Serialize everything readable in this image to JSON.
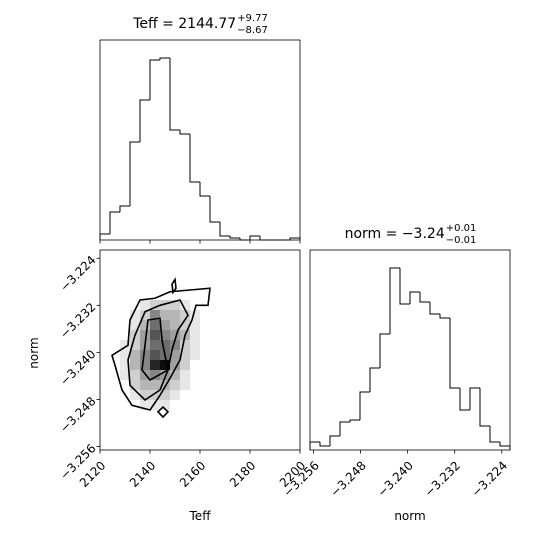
{
  "chart_data": [
    {
      "type": "histogram",
      "title": "Teff = 2144.77",
      "title_sup": "+9.77",
      "title_sub": "−8.67",
      "color": "#000000",
      "xlim": [
        2120,
        2200
      ],
      "ylim": [
        0,
        100
      ],
      "xticks": [
        2120,
        2140,
        2160,
        2180,
        2200
      ],
      "bins": [
        2120,
        2124,
        2128,
        2132,
        2136,
        2140,
        2144,
        2148,
        2152,
        2156,
        2160,
        2164,
        2168,
        2172,
        2176,
        2180,
        2184,
        2188,
        2192,
        2196,
        2200
      ],
      "values": [
        3,
        14,
        17,
        49,
        70,
        90,
        91,
        55,
        53,
        29,
        22,
        9,
        2,
        1,
        0,
        2,
        0,
        0,
        0,
        1
      ]
    },
    {
      "type": "hist2d",
      "xlabel": "Teff",
      "ylabel": "norm",
      "color": "#000000",
      "xlim": [
        2120,
        2200
      ],
      "ylim": [
        -3.2566,
        -3.2226
      ],
      "xticks": [
        2120,
        2140,
        2160,
        2180,
        2200
      ],
      "yticks": [
        {
          "value": -3.256,
          "label": "−3.256"
        },
        {
          "value": -3.248,
          "label": "−3.248"
        },
        {
          "value": -3.24,
          "label": "−3.240"
        },
        {
          "value": -3.232,
          "label": "−3.232"
        },
        {
          "value": -3.224,
          "label": "−3.224"
        }
      ],
      "xbins": [
        2128,
        2132,
        2136,
        2140,
        2144,
        2148,
        2152,
        2156,
        2160
      ],
      "ybins": [
        -3.2498,
        -3.2481,
        -3.2464,
        -3.2447,
        -3.243,
        -3.2413,
        -3.2396,
        -3.2379,
        -3.2362,
        -3.2345,
        -3.2328,
        -3.2311
      ],
      "counts": [
        [
          0,
          0,
          1,
          1,
          1,
          0,
          0,
          0
        ],
        [
          0,
          1,
          2,
          2,
          2,
          1,
          0,
          0
        ],
        [
          0,
          2,
          3,
          3,
          3,
          2,
          1,
          0
        ],
        [
          1,
          2,
          4,
          5,
          4,
          3,
          1,
          0
        ],
        [
          1,
          3,
          5,
          9,
          10,
          4,
          2,
          0
        ],
        [
          1,
          3,
          5,
          7,
          6,
          4,
          2,
          1
        ],
        [
          1,
          2,
          4,
          6,
          6,
          5,
          2,
          1
        ],
        [
          0,
          2,
          4,
          7,
          5,
          4,
          3,
          1
        ],
        [
          0,
          1,
          3,
          6,
          4,
          3,
          2,
          1
        ],
        [
          0,
          1,
          2,
          5,
          3,
          3,
          2,
          1
        ],
        [
          0,
          0,
          1,
          2,
          2,
          2,
          1,
          0
        ]
      ],
      "contours": [
        {
          "x": [
            2131.2,
            2132,
            2136,
            2142,
            2148,
            2156,
            2164,
            2163.2,
            2158.4,
            2156.8,
            2154,
            2152,
            2148,
            2144,
            2140,
            2132.8,
            2128.8,
            2126,
            2124.8
          ],
          "y": [
            -3.2388,
            -3.2345,
            -3.2311,
            -3.2308,
            -3.2297,
            -3.2294,
            -3.2291,
            -3.232,
            -3.232,
            -3.2345,
            -3.2371,
            -3.2413,
            -3.2444,
            -3.2473,
            -3.2498,
            -3.249,
            -3.2464,
            -3.2422,
            -3.2405
          ]
        },
        {
          "x": [
            2134,
            2138,
            2144,
            2152,
            2155.2,
            2151.2,
            2148.8,
            2147.2,
            2144,
            2138,
            2132,
            2131.2
          ],
          "y": [
            -3.2371,
            -3.2331,
            -3.232,
            -3.2311,
            -3.2337,
            -3.2362,
            -3.2396,
            -3.243,
            -3.2464,
            -3.2481,
            -3.2456,
            -3.2413
          ]
        },
        {
          "x": [
            2139.2,
            2144,
            2144.8,
            2146,
            2147.2,
            2140,
            2136.8,
            2138
          ],
          "y": [
            -3.2345,
            -3.2342,
            -3.2379,
            -3.2405,
            -3.243,
            -3.2447,
            -3.243,
            -3.2388
          ]
        },
        {
          "x": [
            2145.2,
            2147.2,
            2145.2,
            2143.2
          ],
          "y": [
            -3.2493,
            -3.2501,
            -3.251,
            -3.2501
          ]
        },
        {
          "x": [
            2148.8,
            2150,
            2150.4,
            2149.2
          ],
          "y": [
            -3.2284,
            -3.2276,
            -3.2291,
            -3.2298
          ]
        }
      ]
    },
    {
      "type": "histogram",
      "title": "norm = −3.24",
      "title_sup": "+0.01",
      "title_sub": "−0.01",
      "xlabel": "norm",
      "color": "#000000",
      "xlim": [
        -3.2566,
        -3.2226
      ],
      "ylim": [
        0,
        100
      ],
      "xticks": [
        {
          "value": -3.256,
          "label": "−3.256"
        },
        {
          "value": -3.248,
          "label": "−3.248"
        },
        {
          "value": -3.24,
          "label": "−3.240"
        },
        {
          "value": -3.232,
          "label": "−3.232"
        },
        {
          "value": -3.224,
          "label": "−3.224"
        }
      ],
      "bins": [
        -3.2566,
        -3.2549,
        -3.2532,
        -3.2515,
        -3.2498,
        -3.2481,
        -3.2464,
        -3.2447,
        -3.243,
        -3.2413,
        -3.2396,
        -3.2379,
        -3.2362,
        -3.2345,
        -3.2328,
        -3.2311,
        -3.2294,
        -3.2277,
        -3.226,
        -3.2243,
        -3.2226
      ],
      "values": [
        4,
        2,
        7,
        14,
        15,
        29,
        41,
        58,
        91,
        73,
        79,
        74,
        68,
        66,
        31,
        20,
        31,
        12,
        4,
        2
      ]
    }
  ]
}
